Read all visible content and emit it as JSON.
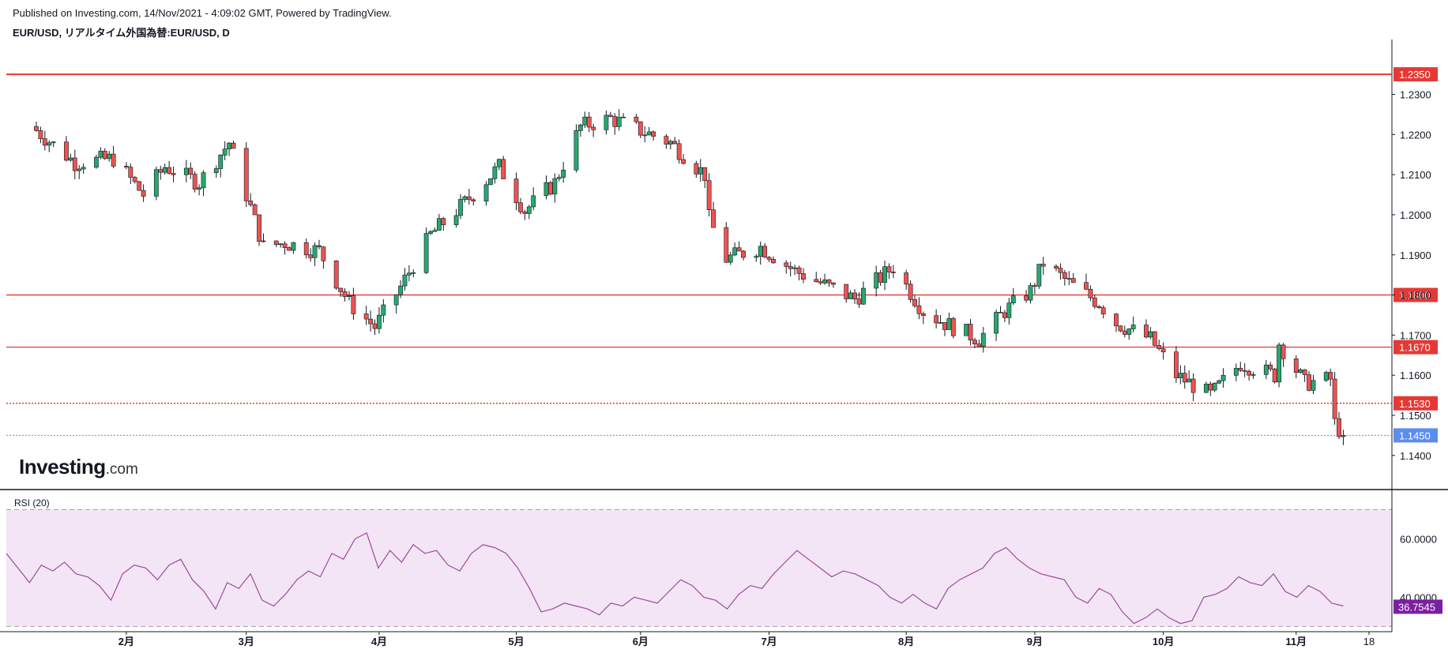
{
  "header": {
    "published": "Published on Investing.com, 14/Nov/2021 - 4:09:02 GMT, Powered by TradingView.",
    "symbol": "EUR/USD, リアルタイム外国為替:EUR/USD, D"
  },
  "logo": {
    "brand": "Investing",
    "suffix": ".com"
  },
  "colors": {
    "up": "#26a96c",
    "down": "#ef5350",
    "rsi_line": "#9c4aa0",
    "rsi_fill": "#f3e5f5",
    "level_red": "#e53935",
    "current_blue": "#5b8def",
    "rsi_badge": "#7b1fa2"
  },
  "chart_data": [
    {
      "type": "candlestick",
      "title": "EUR/USD, リアルタイム外国為替:EUR/USD, D",
      "ylim": [
        1.1315,
        1.2425
      ],
      "y_ticks": [
        "1.2300",
        "1.2200",
        "1.2100",
        "1.2000",
        "1.1900",
        "1.1800",
        "1.1700",
        "1.1600",
        "1.1500",
        "1.1400"
      ],
      "x_ticks": [
        {
          "label": "2月",
          "date": "2021-02-01"
        },
        {
          "label": "3月",
          "date": "2021-03-01"
        },
        {
          "label": "4月",
          "date": "2021-04-01"
        },
        {
          "label": "5月",
          "date": "2021-05-03"
        },
        {
          "label": "6月",
          "date": "2021-06-01"
        },
        {
          "label": "7月",
          "date": "2021-07-01"
        },
        {
          "label": "8月",
          "date": "2021-08-02"
        },
        {
          "label": "9月",
          "date": "2021-09-01"
        },
        {
          "label": "10月",
          "date": "2021-10-01"
        },
        {
          "label": "11月",
          "date": "2021-11-01"
        },
        {
          "label": "18",
          "date": "2021-11-18"
        }
      ],
      "levels": [
        {
          "value": 1.235,
          "label": "1.2350",
          "style": "solid"
        },
        {
          "value": 1.18,
          "label": "1.1800",
          "style": "solid"
        },
        {
          "value": 1.167,
          "label": "1.1670",
          "style": "solid"
        },
        {
          "value": 1.153,
          "label": "1.1530",
          "style": "dotted"
        }
      ],
      "current": {
        "value": 1.145,
        "label": "1.1450"
      },
      "close_path": [
        [
          "2021-01-11",
          1.221
        ],
        [
          "2021-01-20",
          1.213
        ],
        [
          "2021-01-29",
          1.214
        ],
        [
          "2021-02-05",
          1.205
        ],
        [
          "2021-02-10",
          1.212
        ],
        [
          "2021-02-18",
          1.208
        ],
        [
          "2021-02-25",
          1.218
        ],
        [
          "2021-03-05",
          1.192
        ],
        [
          "2021-03-10",
          1.193
        ],
        [
          "2021-03-18",
          1.191
        ],
        [
          "2021-03-25",
          1.178
        ],
        [
          "2021-03-31",
          1.172
        ],
        [
          "2021-04-06",
          1.182
        ],
        [
          "2021-04-13",
          1.195
        ],
        [
          "2021-04-21",
          1.203
        ],
        [
          "2021-04-29",
          1.212
        ],
        [
          "2021-05-05",
          1.201
        ],
        [
          "2021-05-12",
          1.208
        ],
        [
          "2021-05-18",
          1.222
        ],
        [
          "2021-05-25",
          1.224
        ],
        [
          "2021-06-01",
          1.221
        ],
        [
          "2021-06-08",
          1.218
        ],
        [
          "2021-06-16",
          1.21
        ],
        [
          "2021-06-17",
          1.199
        ],
        [
          "2021-06-21",
          1.189
        ],
        [
          "2021-06-29",
          1.192
        ],
        [
          "2021-07-07",
          1.186
        ],
        [
          "2021-07-15",
          1.182
        ],
        [
          "2021-07-21",
          1.179
        ],
        [
          "2021-07-30",
          1.187
        ],
        [
          "2021-08-06",
          1.176
        ],
        [
          "2021-08-11",
          1.173
        ],
        [
          "2021-08-19",
          1.169
        ],
        [
          "2021-08-25",
          1.176
        ],
        [
          "2021-08-31",
          1.181
        ],
        [
          "2021-09-03",
          1.188
        ],
        [
          "2021-09-09",
          1.183
        ],
        [
          "2021-09-16",
          1.178
        ],
        [
          "2021-09-20",
          1.173
        ],
        [
          "2021-09-28",
          1.169
        ],
        [
          "2021-10-04",
          1.16
        ],
        [
          "2021-10-12",
          1.155
        ],
        [
          "2021-10-19",
          1.163
        ],
        [
          "2021-10-27",
          1.16
        ],
        [
          "2021-10-28",
          1.168
        ],
        [
          "2021-11-03",
          1.158
        ],
        [
          "2021-11-09",
          1.159
        ],
        [
          "2021-11-10",
          1.148
        ],
        [
          "2021-11-12",
          1.145
        ]
      ]
    },
    {
      "type": "line",
      "title": "RSI (20)",
      "ylim": [
        32,
        72
      ],
      "y_ticks": [
        "60.0000",
        "40.0000"
      ],
      "bands": [
        30,
        70
      ],
      "current": {
        "value": 36.7545,
        "label": "36.7545"
      },
      "series": [
        {
          "values": [
            55,
            50,
            45,
            51,
            49,
            52,
            48,
            47,
            44,
            39,
            48,
            51,
            50,
            46,
            51,
            53,
            46,
            42,
            36,
            45,
            43,
            48,
            39,
            37,
            41,
            46,
            49,
            47,
            55,
            53,
            60,
            62,
            50,
            56,
            52,
            58,
            55,
            56,
            51,
            49,
            55,
            58,
            57,
            55,
            50,
            43,
            35,
            36,
            38,
            37,
            36,
            34,
            38,
            37,
            40,
            39,
            38,
            42,
            46,
            44,
            40,
            39,
            36,
            41,
            44,
            43,
            48,
            52,
            56,
            53,
            50,
            47,
            49,
            48,
            46,
            44,
            40,
            38,
            41,
            38,
            36,
            43,
            46,
            48,
            50,
            55,
            57,
            53,
            50,
            48,
            47,
            46,
            40,
            38,
            43,
            41,
            35,
            31,
            33,
            36,
            33,
            31,
            32,
            40,
            41,
            43,
            47,
            45,
            44,
            48,
            42,
            40,
            44,
            42,
            38,
            37
          ]
        }
      ]
    }
  ]
}
